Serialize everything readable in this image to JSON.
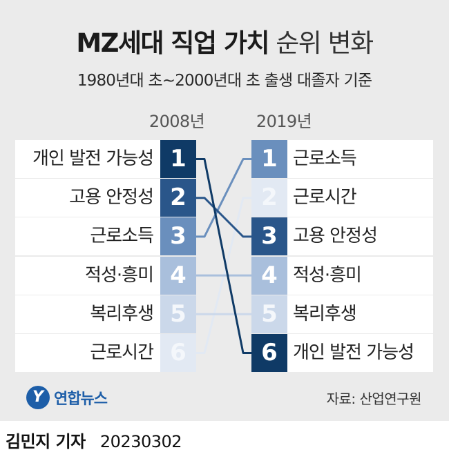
{
  "title_bold": "MZ세대 직업 가치",
  "title_light": "순위 변화",
  "subtitle": "1980년대 초~2000년대 초 출생 대졸자 기준",
  "year_left": "2008년",
  "year_right": "2019년",
  "left_rankings": [
    {
      "rank": "1",
      "label": "개인 발전 가능성",
      "color": "#0f3a66"
    },
    {
      "rank": "2",
      "label": "고용 안정성",
      "color": "#2a568a"
    },
    {
      "rank": "3",
      "label": "근로소득",
      "color": "#6a8fbd"
    },
    {
      "rank": "4",
      "label": "적성·흥미",
      "color": "#a9bfdc"
    },
    {
      "rank": "5",
      "label": "복리후생",
      "color": "#cbd8ea"
    },
    {
      "rank": "6",
      "label": "근로시간",
      "color": "#e2e9f3"
    }
  ],
  "right_rankings": [
    {
      "rank": "1",
      "label": "근로소득",
      "color": "#6a8fbd"
    },
    {
      "rank": "2",
      "label": "근로시간",
      "color": "#e2e9f3"
    },
    {
      "rank": "3",
      "label": "고용 안정성",
      "color": "#2a568a"
    },
    {
      "rank": "4",
      "label": "적성·흥미",
      "color": "#a9bfdc"
    },
    {
      "rank": "5",
      "label": "복리후생",
      "color": "#cbd8ea"
    },
    {
      "rank": "6",
      "label": "개인 발전 가능성",
      "color": "#0f3a66"
    }
  ],
  "connections": [
    {
      "from": 1,
      "to": 6,
      "color": "#0f3a66"
    },
    {
      "from": 2,
      "to": 3,
      "color": "#2a568a"
    },
    {
      "from": 3,
      "to": 1,
      "color": "#6a8fbd"
    },
    {
      "from": 4,
      "to": 4,
      "color": "#a9bfdc"
    },
    {
      "from": 5,
      "to": 5,
      "color": "#cbd8ea"
    },
    {
      "from": 6,
      "to": 2,
      "color": "#e2e9f3"
    }
  ],
  "logo_text": "연합뉴스",
  "source": "자료: 산업연구원",
  "byline_name": "김민지 기자",
  "byline_date": "20230302"
}
